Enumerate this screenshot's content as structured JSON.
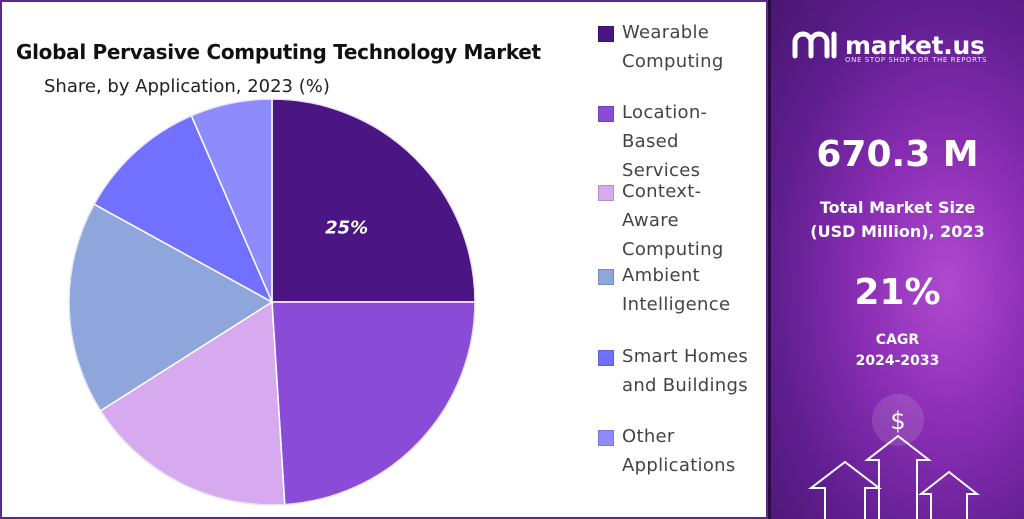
{
  "chart_data": {
    "type": "pie",
    "title": "Global Pervasive Computing Technology Market",
    "subtitle": "Share, by Application, 2023 (%)",
    "slices": [
      {
        "label": "Wearable Computing",
        "value": 25,
        "color": "#4b1583",
        "data_label": "25%"
      },
      {
        "label": "Location-Based Services",
        "value": 24,
        "color": "#8a4cd6",
        "data_label": ""
      },
      {
        "label": "Context-Aware Computing",
        "value": 17,
        "color": "#d7aaf0",
        "data_label": ""
      },
      {
        "label": "Ambient Intelligence",
        "value": 17,
        "color": "#8fa6dc",
        "data_label": ""
      },
      {
        "label": "Smart Homes and Buildings",
        "value": 10.5,
        "color": "#7270ff",
        "data_label": ""
      },
      {
        "label": "Other Applications",
        "value": 6.5,
        "color": "#8e8cfc",
        "data_label": ""
      }
    ],
    "legend_placement": "right",
    "start_angle": "12 o'clock, clockwise"
  },
  "legend": {
    "items": [
      {
        "lines": [
          "Wearable",
          "Computing"
        ],
        "color": "#4b1583"
      },
      {
        "lines": [
          "Location-",
          "Based",
          "Services"
        ],
        "color": "#8a4cd6"
      },
      {
        "lines": [
          "Context-",
          "Aware",
          "Computing"
        ],
        "color": "#d7aaf0"
      },
      {
        "lines": [
          "Ambient",
          "Intelligence"
        ],
        "color": "#8fa6dc"
      },
      {
        "lines": [
          "Smart Homes",
          "and Buildings"
        ],
        "color": "#7270ff"
      },
      {
        "lines": [
          "Other",
          "Applications"
        ],
        "color": "#8e8cfc"
      }
    ]
  },
  "brand": {
    "name": "market.us",
    "tagline": "ONE STOP SHOP FOR THE REPORTS"
  },
  "stats": {
    "market_size_value": "670.3 M",
    "market_size_label_line1": "Total Market Size",
    "market_size_label_line2": "(USD Million), 2023",
    "cagr_value": "21%",
    "cagr_label_line1": "CAGR",
    "cagr_label_line2": "2024-2033"
  },
  "icons": {
    "dollar": "$"
  }
}
